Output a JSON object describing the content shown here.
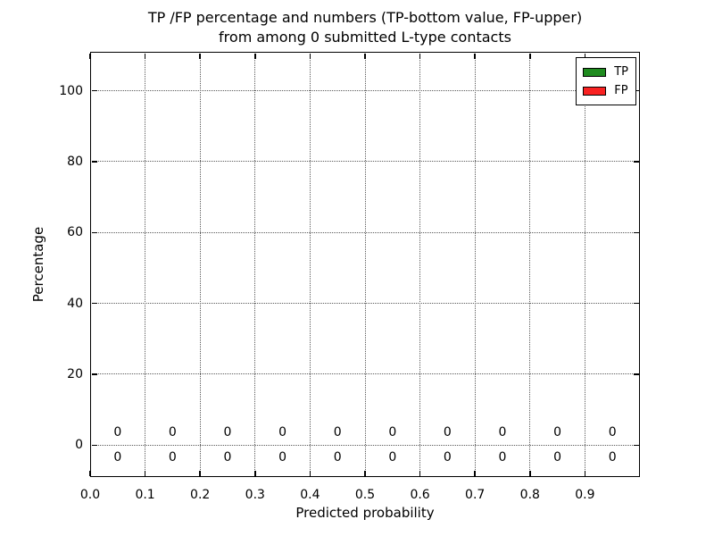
{
  "chart_data": {
    "type": "bar",
    "title_lines": [
      "TP /FP percentage and numbers (TP-bottom value, FP-upper)",
      "from among 0 submitted L-type contacts"
    ],
    "xlabel": "Predicted probability",
    "ylabel": "Percentage",
    "xlim": [
      0.0,
      1.0
    ],
    "ylim": [
      -9,
      111
    ],
    "grid": {
      "style": "dotted",
      "color": "#5a5a5a"
    },
    "x_ticks": [
      {
        "value": 0.0,
        "label": "0.0"
      },
      {
        "value": 0.1,
        "label": "0.1"
      },
      {
        "value": 0.2,
        "label": "0.2"
      },
      {
        "value": 0.3,
        "label": "0.3"
      },
      {
        "value": 0.4,
        "label": "0.4"
      },
      {
        "value": 0.5,
        "label": "0.5"
      },
      {
        "value": 0.6,
        "label": "0.6"
      },
      {
        "value": 0.7,
        "label": "0.7"
      },
      {
        "value": 0.8,
        "label": "0.8"
      },
      {
        "value": 0.9,
        "label": "0.9"
      }
    ],
    "y_ticks": [
      {
        "value": 0,
        "label": "0"
      },
      {
        "value": 20,
        "label": "20"
      },
      {
        "value": 40,
        "label": "40"
      },
      {
        "value": 60,
        "label": "60"
      },
      {
        "value": 80,
        "label": "80"
      },
      {
        "value": 100,
        "label": "100"
      }
    ],
    "bin_centers": [
      0.05,
      0.15,
      0.25,
      0.35,
      0.45,
      0.55,
      0.65,
      0.75,
      0.85,
      0.95
    ],
    "series": [
      {
        "name": "TP",
        "color": "#1f8b1f",
        "label_row": "bottom",
        "percent_values": [
          0,
          0,
          0,
          0,
          0,
          0,
          0,
          0,
          0,
          0
        ],
        "count_labels": [
          "0",
          "0",
          "0",
          "0",
          "0",
          "0",
          "0",
          "0",
          "0",
          "0"
        ]
      },
      {
        "name": "FP",
        "color": "#f92222",
        "label_row": "top",
        "percent_values": [
          0,
          0,
          0,
          0,
          0,
          0,
          0,
          0,
          0,
          0
        ],
        "count_labels": [
          "0",
          "0",
          "0",
          "0",
          "0",
          "0",
          "0",
          "0",
          "0",
          "0"
        ]
      }
    ],
    "legend": {
      "position": "upper right",
      "entries": [
        {
          "label": "TP",
          "color": "#1f8b1f"
        },
        {
          "label": "FP",
          "color": "#f92222"
        }
      ]
    }
  }
}
